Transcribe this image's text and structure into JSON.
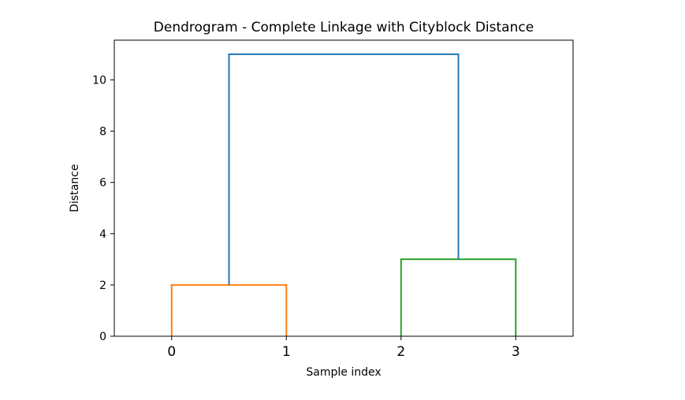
{
  "chart_data": {
    "type": "dendrogram",
    "title": "Dendrogram - Complete Linkage with Cityblock Distance",
    "xlabel": "Sample index",
    "ylabel": "Distance",
    "ylim": [
      0,
      11.55
    ],
    "xlim": [
      0,
      40
    ],
    "yticks": [
      0,
      2,
      4,
      6,
      8,
      10
    ],
    "leaves": [
      "0",
      "1",
      "2",
      "3"
    ],
    "leaf_positions": [
      5,
      15,
      25,
      35
    ],
    "grid": false,
    "links": [
      {
        "x": [
          5,
          5,
          15,
          15
        ],
        "y": [
          0,
          2,
          2,
          0
        ],
        "color": "#ff7f0e"
      },
      {
        "x": [
          25,
          25,
          35,
          35
        ],
        "y": [
          0,
          3,
          3,
          0
        ],
        "color": "#2ca02c"
      },
      {
        "x": [
          10,
          10,
          30,
          30
        ],
        "y": [
          2,
          11,
          11,
          3
        ],
        "color": "#1f77b4"
      }
    ]
  }
}
